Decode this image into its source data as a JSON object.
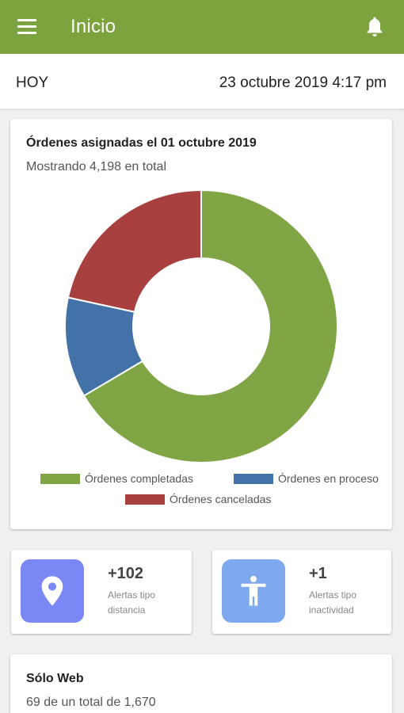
{
  "appbar": {
    "title": "Inicio",
    "menu_icon": "hamburger-menu-icon",
    "bell_icon": "bell-icon",
    "color": "#7da33e"
  },
  "date_bar": {
    "left": "HOY",
    "right": "23 octubre 2019 4:17 pm"
  },
  "orders_card": {
    "title": "Órdenes asignadas el 01 octubre 2019",
    "subtitle": "Mostrando 4,198 en total"
  },
  "chart_data": {
    "type": "pie",
    "donut": true,
    "categories": [
      "Órdenes completadas",
      "Órdenes en proceso",
      "Órdenes canceladas"
    ],
    "values": [
      66.5,
      11.9,
      21.6
    ],
    "colors": [
      "#80a545",
      "#4272a8",
      "#a8403f"
    ],
    "legend_position": "bottom"
  },
  "stats": [
    {
      "icon": "location-pin-icon",
      "value": "+102",
      "label_line1": "Alertas tipo",
      "label_line2": "distancia",
      "color": "#7b87f5"
    },
    {
      "icon": "person-standing-icon",
      "value": "+1",
      "label_line1": "Alertas tipo",
      "label_line2": "inactividad",
      "color": "#7ea9ee"
    }
  ],
  "web_card": {
    "title": "Sólo Web",
    "subtitle": "69 de un total de 1,670"
  }
}
